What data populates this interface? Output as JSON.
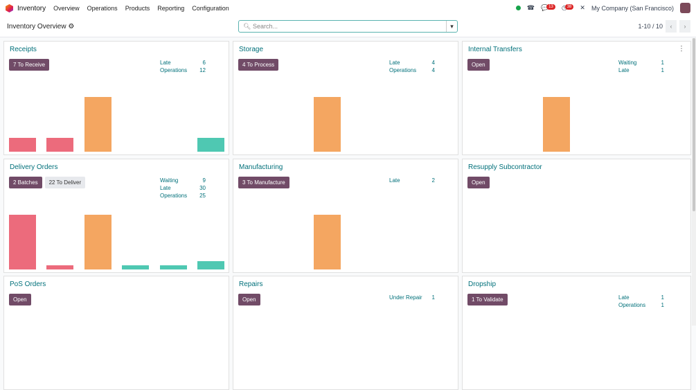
{
  "topbar": {
    "app": "Inventory",
    "menus": [
      "Overview",
      "Operations",
      "Products",
      "Reporting",
      "Configuration"
    ],
    "messages_count": "13",
    "activities_count": "38",
    "company": "My Company (San Francisco)"
  },
  "control": {
    "title": "Inventory Overview",
    "search_placeholder": "Search...",
    "pager": "1-10 / 10"
  },
  "colors": {
    "late": "#ec6b7c",
    "waiting": "#f4a661",
    "ready": "#4fc8b2",
    "primary": "#714b67"
  },
  "cards": [
    {
      "title": "Receipts",
      "buttons": [
        {
          "label": "7 To Receive",
          "primary": true
        }
      ],
      "stats": [
        {
          "label": "Late",
          "value": "6"
        },
        {
          "label": "Operations",
          "value": "12"
        }
      ],
      "bars": [
        {
          "v": 1,
          "c": "late"
        },
        {
          "v": 1,
          "c": "late"
        },
        {
          "v": 4,
          "c": "waiting"
        },
        {
          "v": 0,
          "c": "ready"
        },
        {
          "v": 0,
          "c": "ready"
        },
        {
          "v": 1,
          "c": "ready"
        }
      ]
    },
    {
      "title": "Storage",
      "buttons": [
        {
          "label": "4 To Process",
          "primary": true
        }
      ],
      "stats": [
        {
          "label": "Late",
          "value": "4"
        },
        {
          "label": "Operations",
          "value": "4"
        }
      ],
      "bars": [
        {
          "v": 0,
          "c": "late"
        },
        {
          "v": 0,
          "c": "late"
        },
        {
          "v": 4,
          "c": "waiting"
        },
        {
          "v": 0,
          "c": "ready"
        },
        {
          "v": 0,
          "c": "ready"
        },
        {
          "v": 0,
          "c": "ready"
        }
      ]
    },
    {
      "title": "Internal Transfers",
      "kebab": true,
      "buttons": [
        {
          "label": "Open",
          "primary": true
        }
      ],
      "stats": [
        {
          "label": "Waiting",
          "value": "1"
        },
        {
          "label": "Late",
          "value": "1"
        }
      ],
      "bars": [
        {
          "v": 0,
          "c": "late"
        },
        {
          "v": 0,
          "c": "late"
        },
        {
          "v": 1,
          "c": "waiting"
        },
        {
          "v": 0,
          "c": "ready"
        },
        {
          "v": 0,
          "c": "ready"
        },
        {
          "v": 0,
          "c": "ready"
        }
      ]
    },
    {
      "title": "Delivery Orders",
      "buttons": [
        {
          "label": "2 Batches",
          "primary": true
        },
        {
          "label": "22 To Deliver",
          "primary": false
        }
      ],
      "stats": [
        {
          "label": "Waiting",
          "value": "9"
        },
        {
          "label": "Late",
          "value": "30"
        },
        {
          "label": "Operations",
          "value": "25"
        }
      ],
      "bars": [
        {
          "v": 13,
          "c": "late"
        },
        {
          "v": 1,
          "c": "late"
        },
        {
          "v": 13,
          "c": "waiting"
        },
        {
          "v": 1,
          "c": "ready"
        },
        {
          "v": 1,
          "c": "ready"
        },
        {
          "v": 2,
          "c": "ready"
        }
      ]
    },
    {
      "title": "Manufacturing",
      "buttons": [
        {
          "label": "3 To Manufacture",
          "primary": true
        }
      ],
      "stats": [
        {
          "label": "Late",
          "value": "2"
        }
      ],
      "bars": [
        {
          "v": 0,
          "c": "late"
        },
        {
          "v": 0,
          "c": "late"
        },
        {
          "v": 2,
          "c": "waiting"
        },
        {
          "v": 0,
          "c": "ready"
        },
        {
          "v": 0,
          "c": "ready"
        },
        {
          "v": 0,
          "c": "ready"
        }
      ]
    },
    {
      "title": "Resupply Subcontractor",
      "buttons": [
        {
          "label": "Open",
          "primary": true
        }
      ],
      "stats": [],
      "bars": []
    },
    {
      "title": "PoS Orders",
      "buttons": [
        {
          "label": "Open",
          "primary": true
        }
      ],
      "stats": [],
      "bars": []
    },
    {
      "title": "Repairs",
      "buttons": [
        {
          "label": "Open",
          "primary": true
        }
      ],
      "stats": [
        {
          "label": "Under Repair",
          "value": "1"
        }
      ],
      "bars": []
    },
    {
      "title": "Dropship",
      "buttons": [
        {
          "label": "1 To Validate",
          "primary": true
        }
      ],
      "stats": [
        {
          "label": "Late",
          "value": "1"
        },
        {
          "label": "Operations",
          "value": "1"
        }
      ],
      "bars": []
    }
  ]
}
